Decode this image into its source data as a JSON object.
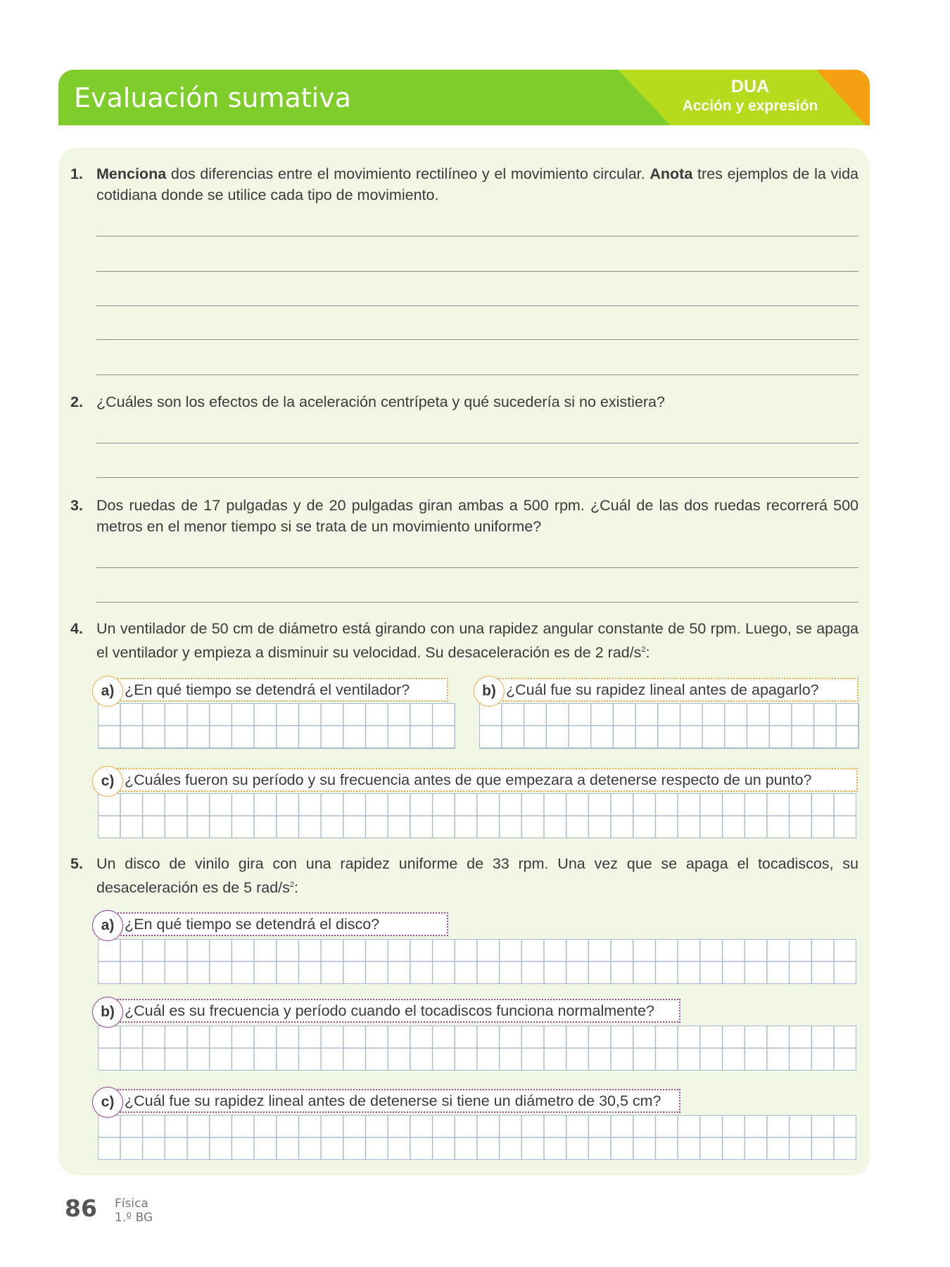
{
  "header": {
    "title": "Evaluación sumativa",
    "dua": "DUA",
    "dua_subtitle": "Acción y expresión",
    "colors": {
      "green": "#7ecd2b",
      "lime": "#b5db1c",
      "orange": "#f5a012"
    }
  },
  "questions": [
    {
      "num": "1.",
      "bold1": "Menciona",
      "text1": " dos diferencias entre el movimiento rectilíneo y el movimiento circular. ",
      "bold2": "Anota",
      "text2": " tres ejemplos de la vida cotidiana donde se utilice cada tipo de movimiento."
    },
    {
      "num": "2.",
      "text": "¿Cuáles son los efectos de la aceleración centrípeta y qué sucedería si no existiera?"
    },
    {
      "num": "3.",
      "text": "Dos ruedas de 17 pulgadas y de 20 pulgadas giran ambas a 500 rpm. ¿Cuál de las dos ruedas recorrerá 500 metros en el menor tiempo si se trata de un movimiento uniforme?"
    },
    {
      "num": "4.",
      "text": "Un ventilador de 50 cm de diámetro está girando con una rapidez angular constante de 50 rpm. Luego, se apaga el ventilador y empieza a disminuir su velocidad. Su desaceleración es de 2 rad/s",
      "sup": "2",
      "tail": ":",
      "parts": [
        {
          "label": "a)",
          "text": "¿En qué tiempo se detendrá el ventilador?"
        },
        {
          "label": "b)",
          "text": "¿Cuál fue su rapidez lineal antes de apagarlo?"
        },
        {
          "label": "c)",
          "text": "¿Cuáles fueron su período y su frecuencia antes de que empezara a detenerse respecto de un punto?"
        }
      ]
    },
    {
      "num": "5.",
      "text": "Un disco de vinilo gira con una rapidez uniforme de 33 rpm. Una vez que se apaga el tocadiscos, su desaceleración es de 5 rad/s",
      "sup": "2",
      "tail": ":",
      "parts": [
        {
          "label": "a)",
          "text": "¿En qué tiempo se detendrá el disco?"
        },
        {
          "label": "b)",
          "text": "¿Cuál es su frecuencia y período cuando el tocadiscos funciona normalmente?"
        },
        {
          "label": "c)",
          "text": "¿Cuál fue su rapidez lineal antes de detenerse si tiene un diámetro de 30,5 cm?"
        }
      ]
    }
  ],
  "footer": {
    "page": "86",
    "subject": "Física",
    "grade": "1.º BG"
  }
}
